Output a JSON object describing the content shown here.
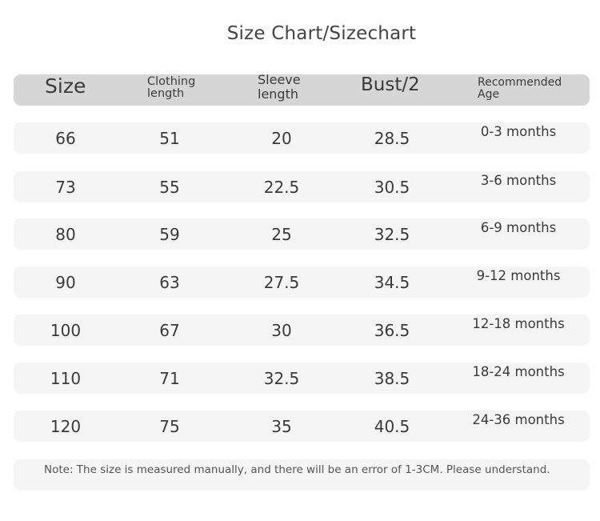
{
  "title": "Size Chart/Sizechart",
  "headers": {
    "size": "Size",
    "clothing_length": [
      "Clothing",
      "length"
    ],
    "sleeve_length": [
      "Sleeve",
      "length"
    ],
    "bust": "Bust/2",
    "age": [
      "Recommended",
      "Age"
    ]
  },
  "rows": [
    {
      "size": "66",
      "length": "51",
      "sleeve": "20",
      "bust": "28.5",
      "age": "0-3 months"
    },
    {
      "size": "73",
      "length": "55",
      "sleeve": "22.5",
      "bust": "30.5",
      "age": "3-6 months"
    },
    {
      "size": "80",
      "length": "59",
      "sleeve": "25",
      "bust": "32.5",
      "age": "6-9 months"
    },
    {
      "size": "90",
      "length": "63",
      "sleeve": "27.5",
      "bust": "34.5",
      "age": "9-12 months"
    },
    {
      "size": "100",
      "length": "67",
      "sleeve": "30",
      "bust": "36.5",
      "age": "12-18 months"
    },
    {
      "size": "110",
      "length": "71",
      "sleeve": "32.5",
      "bust": "38.5",
      "age": "18-24 months"
    },
    {
      "size": "120",
      "length": "75",
      "sleeve": "35",
      "bust": "40.5",
      "age": "24-36 months"
    }
  ],
  "note": "Note: The size is measured manually, and there will be an error of 1-3CM. Please understand.",
  "colors": {
    "header_bg": "#d6d6d6",
    "row_bg": "#f5f5f5",
    "text": "#3a3a3a"
  }
}
